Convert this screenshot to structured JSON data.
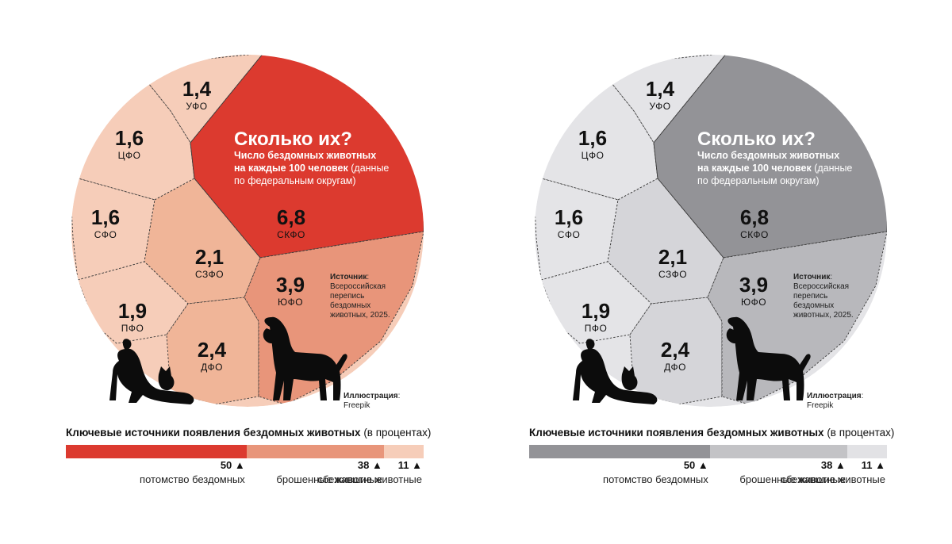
{
  "chart_data": [
    {
      "type": "voronoi-treemap",
      "title": "Сколько их?",
      "subtitle_bold": "Число бездомных животных на каждые 100 человек",
      "subtitle_rest": "(данные по федеральным округам)",
      "regions": [
        {
          "name": "УФО",
          "value": "1,4"
        },
        {
          "name": "ЦФО",
          "value": "1,6"
        },
        {
          "name": "СФО",
          "value": "1,6"
        },
        {
          "name": "СЗФО",
          "value": "2,1"
        },
        {
          "name": "ПФО",
          "value": "1,9"
        },
        {
          "name": "ДФО",
          "value": "2,4"
        },
        {
          "name": "СКФО",
          "value": "6,8"
        },
        {
          "name": "ЮФО",
          "value": "3,9"
        }
      ],
      "source_label": "Источник",
      "source_text": [
        "Всероссийская",
        "перепись",
        "бездомных",
        "животных, 2025."
      ],
      "illustration_label": "Иллюстрация",
      "illustration_text": "Freepik"
    },
    {
      "type": "stacked-bar",
      "title_bold": "Ключевые источники появления бездомных животных",
      "title_rest": "(в процентах)",
      "categories": [
        "потомство бездомных",
        "брошенные животные",
        "сбежавшие животные"
      ],
      "values": [
        50,
        38,
        11
      ],
      "value_labels": [
        "50 ▲",
        "38 ▲",
        "11 ▲"
      ]
    }
  ],
  "themes": [
    {
      "name": "red",
      "colors": {
        "light": "#f6cdb9",
        "mid": "#f0b598",
        "strong": "#e8957a",
        "accent": "#dc3a2f",
        "text": "#111111",
        "bar": [
          "#dc3a2f",
          "#e8957a",
          "#f6cdb9"
        ]
      }
    },
    {
      "name": "gray",
      "colors": {
        "light": "#e4e4e7",
        "mid": "#d5d5d9",
        "strong": "#b8b8bc",
        "accent": "#939397",
        "text": "#111111",
        "bar": [
          "#939397",
          "#c3c3c6",
          "#e2e2e5"
        ]
      }
    }
  ]
}
